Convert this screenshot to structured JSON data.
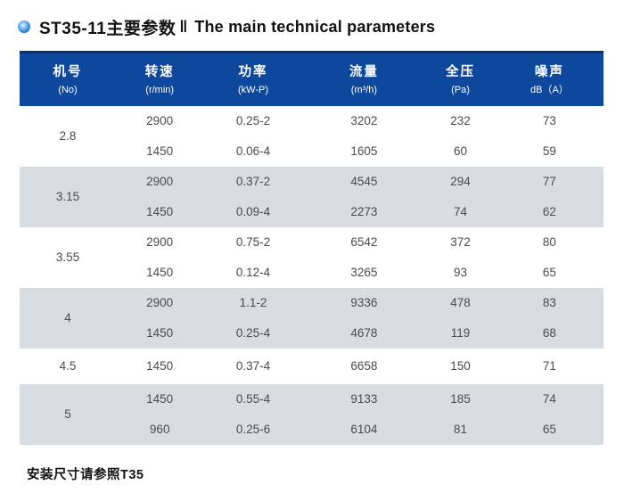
{
  "title": {
    "zh": "ST35-11主要参数",
    "separator": "‖",
    "en": "The main technical parameters"
  },
  "icons": {
    "bullet": "blue-sphere-bullet"
  },
  "colors": {
    "header_bg": "#0e489c",
    "header_top_edge": "#0a3174",
    "shaded_row_bg": "#d7dde0",
    "data_text": "#4b4b4b",
    "title_text": "#121212"
  },
  "table": {
    "columns": [
      {
        "zh": "机号",
        "sub": "(No)"
      },
      {
        "zh": "转速",
        "sub": "(r/min)"
      },
      {
        "zh": "功率",
        "sub": "(kW-P)"
      },
      {
        "zh": "流量",
        "sub": "(m³/h)"
      },
      {
        "zh": "全压",
        "sub": "(Pa)"
      },
      {
        "zh": "噪声",
        "sub": "dB（A）"
      }
    ],
    "groups": [
      {
        "no": "2.8",
        "shaded": false,
        "rows": [
          [
            "2900",
            "0.25-2",
            "3202",
            "232",
            "73"
          ],
          [
            "1450",
            "0.06-4",
            "1605",
            "60",
            "59"
          ]
        ]
      },
      {
        "no": "3.15",
        "shaded": true,
        "rows": [
          [
            "2900",
            "0.37-2",
            "4545",
            "294",
            "77"
          ],
          [
            "1450",
            "0.09-4",
            "2273",
            "74",
            "62"
          ]
        ]
      },
      {
        "no": "3.55",
        "shaded": false,
        "rows": [
          [
            "2900",
            "0.75-2",
            "6542",
            "372",
            "80"
          ],
          [
            "1450",
            "0.12-4",
            "3265",
            "93",
            "65"
          ]
        ]
      },
      {
        "no": "4",
        "shaded": true,
        "rows": [
          [
            "2900",
            "1.1-2",
            "9336",
            "478",
            "83"
          ],
          [
            "1450",
            "0.25-4",
            "4678",
            "119",
            "68"
          ]
        ]
      },
      {
        "no": "4.5",
        "shaded": false,
        "rows": [
          [
            "1450",
            "0.37-4",
            "6658",
            "150",
            "71"
          ]
        ]
      },
      {
        "no": "5",
        "shaded": true,
        "rows": [
          [
            "1450",
            "0.55-4",
            "9133",
            "185",
            "74"
          ],
          [
            "960",
            "0.25-6",
            "6104",
            "81",
            "65"
          ]
        ]
      }
    ]
  },
  "footer": {
    "note": "安装尺寸请参照T35"
  }
}
